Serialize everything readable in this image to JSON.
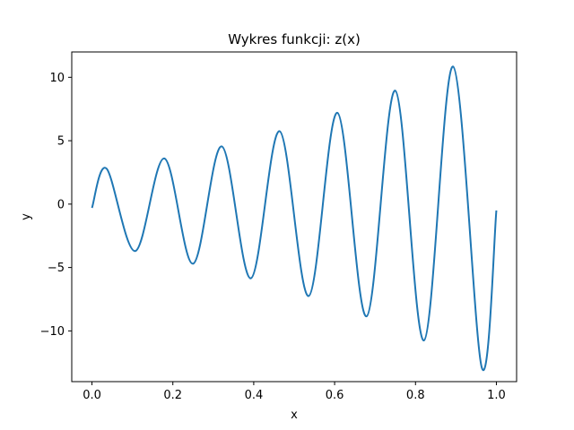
{
  "chart_data": {
    "type": "line",
    "title": "Wykres funkcji: z(x)",
    "xlabel": "x",
    "ylabel": "y",
    "xlim": [
      -0.05,
      1.05
    ],
    "ylim": [
      -14,
      12
    ],
    "grid": false,
    "x_ticks": [
      {
        "value": 0.0,
        "label": "0.0"
      },
      {
        "value": 0.2,
        "label": "0.2"
      },
      {
        "value": 0.4,
        "label": "0.4"
      },
      {
        "value": 0.6,
        "label": "0.6"
      },
      {
        "value": 0.8,
        "label": "0.8"
      },
      {
        "value": 1.0,
        "label": "1.0"
      }
    ],
    "y_ticks": [
      {
        "value": 10,
        "label": "10"
      },
      {
        "value": 5,
        "label": "5"
      },
      {
        "value": 0,
        "label": "0"
      },
      {
        "value": -5,
        "label": "−5"
      },
      {
        "value": -10,
        "label": "−10"
      }
    ],
    "series": [
      {
        "color": "#1f77b4",
        "points": [
          [
            0.0,
            -0.3
          ],
          [
            0.036,
            2.8
          ],
          [
            0.107,
            -3.7
          ],
          [
            0.179,
            3.6
          ],
          [
            0.25,
            -4.7
          ],
          [
            0.321,
            4.55
          ],
          [
            0.393,
            -5.85
          ],
          [
            0.464,
            5.75
          ],
          [
            0.536,
            -7.25
          ],
          [
            0.607,
            7.2
          ],
          [
            0.679,
            -8.85
          ],
          [
            0.75,
            8.95
          ],
          [
            0.821,
            -10.75
          ],
          [
            0.893,
            10.85
          ],
          [
            0.964,
            -12.9
          ],
          [
            1.0,
            -0.5
          ]
        ]
      }
    ]
  }
}
